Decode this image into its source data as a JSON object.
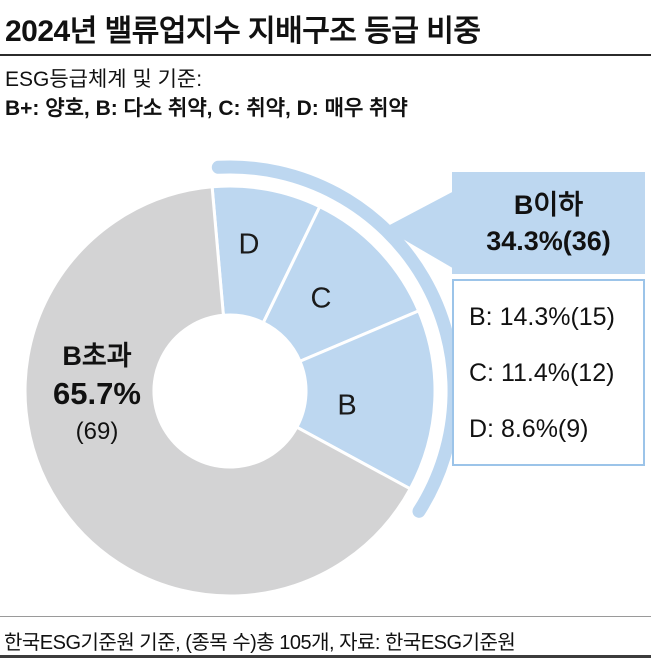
{
  "header": {
    "title": "2024년 밸류업지수 지배구조 등급 비중",
    "subtitle_line1": "ESG등급체계 및 기준:",
    "subtitle_line2": "B+: 양호, B: 다소 취약, C: 취약, D: 매우 취약"
  },
  "donut_center_label": {
    "line1": "B초과",
    "line2": "65.7%",
    "line3": "(69)"
  },
  "callout": {
    "title": "B이하",
    "value": "34.3%(36)",
    "items": [
      {
        "label": "B: 14.3%(15)"
      },
      {
        "label": "C: 11.4%(12)"
      },
      {
        "label": "D: 8.6%(9)"
      }
    ]
  },
  "footer": {
    "text": "한국ESG기준원 기준, (종목 수)총 105개, 자료: 한국ESG기준원"
  },
  "colors": {
    "blue": "#bdd7f0",
    "gray": "#d3d3d4",
    "callout_border": "#9cc4e9"
  },
  "chart_data": {
    "type": "pie",
    "title": "2024년 밸류업지수 지배구조 등급 비중",
    "total_count": 105,
    "start_angle_deg": -5,
    "highlight_group": "B이하",
    "highlight_total": {
      "percent": 34.3,
      "count": 36
    },
    "slices": [
      {
        "label": "D",
        "percent": 8.6,
        "count": 9,
        "group": "B이하"
      },
      {
        "label": "C",
        "percent": 11.4,
        "count": 12,
        "group": "B이하"
      },
      {
        "label": "B",
        "percent": 14.3,
        "count": 15,
        "group": "B이하"
      },
      {
        "label": "B초과",
        "percent": 65.7,
        "count": 69,
        "group": "B초과"
      }
    ],
    "legend_position": "right-callout",
    "source": "자료: 한국ESG기준원"
  }
}
